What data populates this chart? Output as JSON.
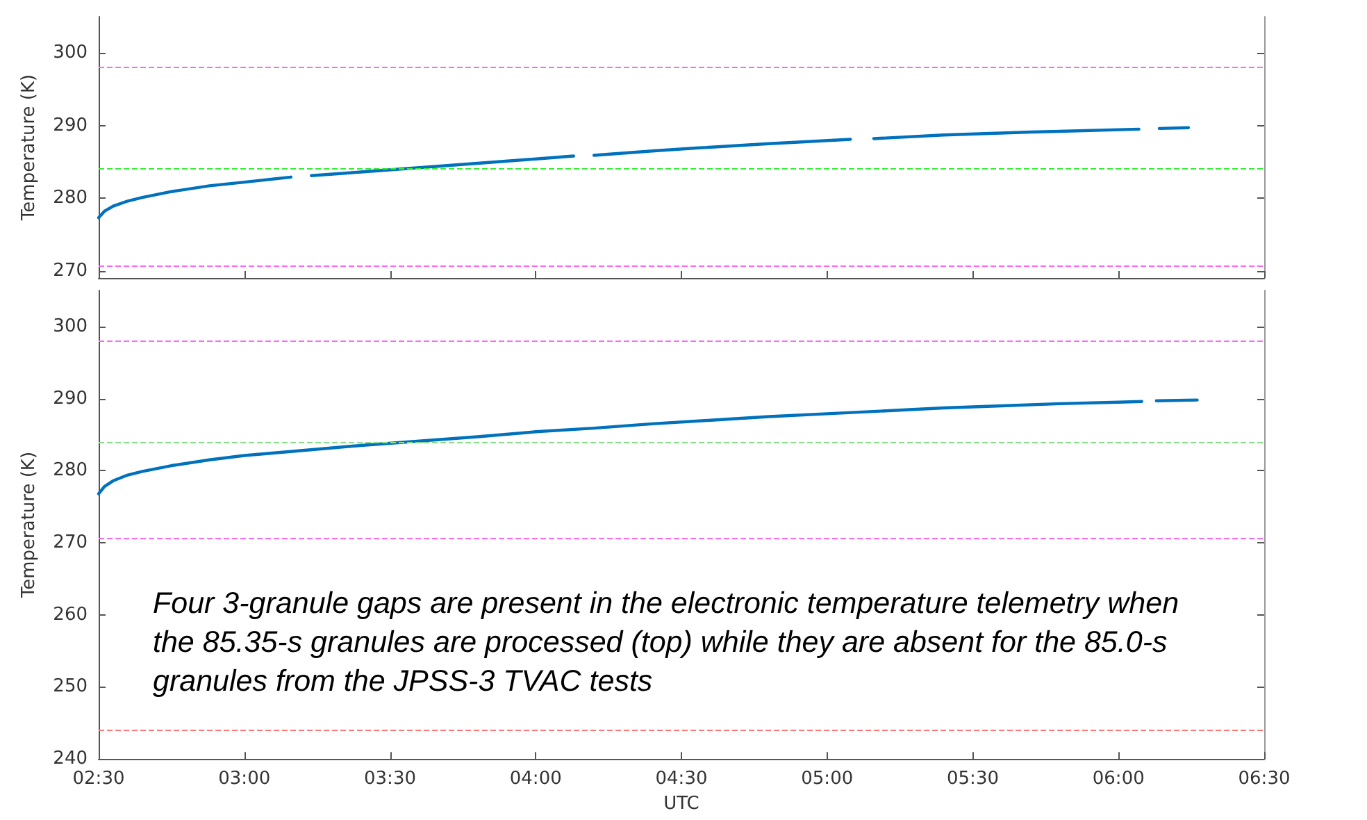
{
  "chart_data": [
    {
      "type": "line",
      "ylabel": "Temperature (K)",
      "xlim": [
        2.5,
        6.5
      ],
      "xticks": [
        2.5,
        3,
        3.5,
        4,
        4.5,
        5,
        5.5,
        6,
        6.5
      ],
      "ylim": [
        269,
        305
      ],
      "yticks": [
        270,
        280,
        290,
        300
      ],
      "tick_labels": "y",
      "grid": false,
      "marker": "none",
      "line_style": "solid",
      "series": [
        {
          "color": "#0072bd",
          "x": [
            2.5,
            2.52,
            2.55,
            2.6,
            2.65,
            2.75,
            2.88,
            3.0,
            3.16,
            3.2,
            3.23,
            3.4,
            3.6,
            3.8,
            4.0,
            4.13,
            4.16,
            4.2,
            4.4,
            4.55,
            4.8,
            5.08,
            5.12,
            5.16,
            5.4,
            5.7,
            6.07,
            6.1,
            6.14,
            6.24
          ],
          "values": [
            277.3,
            278.2,
            278.9,
            279.6,
            280.1,
            280.9,
            281.7,
            282.2,
            282.9,
            null,
            283.1,
            283.6,
            284.2,
            284.8,
            285.4,
            285.8,
            null,
            285.9,
            286.5,
            286.9,
            287.5,
            288.1,
            null,
            288.2,
            288.7,
            289.1,
            289.5,
            null,
            289.6,
            289.7
          ]
        }
      ],
      "ref_lines": [
        {
          "axis": "y",
          "value": 298,
          "color": "#ff66ff",
          "line_style": "dashed"
        },
        {
          "axis": "y",
          "value": 284,
          "color": "#33ee33",
          "line_style": "dashed"
        },
        {
          "axis": "y",
          "value": 270.6,
          "color": "#ff66ff",
          "line_style": "dashed"
        }
      ]
    },
    {
      "type": "line",
      "ylabel": "Temperature (K)",
      "xlabel": "UTC",
      "xlim": [
        2.5,
        6.5
      ],
      "xticks": [
        {
          "value": 2.5,
          "label": "02:30"
        },
        {
          "value": 3,
          "label": "03:00"
        },
        {
          "value": 3.5,
          "label": "03:30"
        },
        {
          "value": 4,
          "label": "04:00"
        },
        {
          "value": 4.5,
          "label": "04:30"
        },
        {
          "value": 5,
          "label": "05:00"
        },
        {
          "value": 5.5,
          "label": "05:30"
        },
        {
          "value": 6,
          "label": "06:00"
        },
        {
          "value": 6.5,
          "label": "06:30"
        }
      ],
      "ylim": [
        240,
        305
      ],
      "yticks": [
        240,
        250,
        260,
        270,
        280,
        290,
        300
      ],
      "grid": false,
      "marker": "none",
      "line_style": "solid",
      "series": [
        {
          "color": "#0072bd",
          "x": [
            2.5,
            2.52,
            2.55,
            2.6,
            2.65,
            2.75,
            2.88,
            3.0,
            3.2,
            3.4,
            3.6,
            3.8,
            4.0,
            4.2,
            4.4,
            4.6,
            4.8,
            5.0,
            5.2,
            5.4,
            5.6,
            5.8,
            6.0,
            6.08,
            6.1,
            6.13,
            6.27
          ],
          "values": [
            276.8,
            277.8,
            278.6,
            279.4,
            279.9,
            280.7,
            281.5,
            282.1,
            282.8,
            283.5,
            284.1,
            284.7,
            285.4,
            285.9,
            286.5,
            287.0,
            287.5,
            287.9,
            288.3,
            288.7,
            289.0,
            289.3,
            289.5,
            289.6,
            null,
            289.7,
            289.8
          ]
        }
      ],
      "ref_lines": [
        {
          "axis": "y",
          "value": 298,
          "color": "#ff66ff",
          "line_style": "dashed"
        },
        {
          "axis": "y",
          "value": 284,
          "color": "#88dd88",
          "line_style": "dashed"
        },
        {
          "axis": "y",
          "value": 270.6,
          "color": "#ff66ff",
          "line_style": "dashed"
        },
        {
          "axis": "y",
          "value": 244,
          "color": "#ff7777",
          "line_style": "dashed"
        }
      ],
      "annotations": [
        "Four 3-granule gaps are present in the electronic temperature telemetry when the 85.35-s granules are processed (top) while they are absent for the 85.0-s granules from the JPSS-3 TVAC tests"
      ]
    }
  ]
}
